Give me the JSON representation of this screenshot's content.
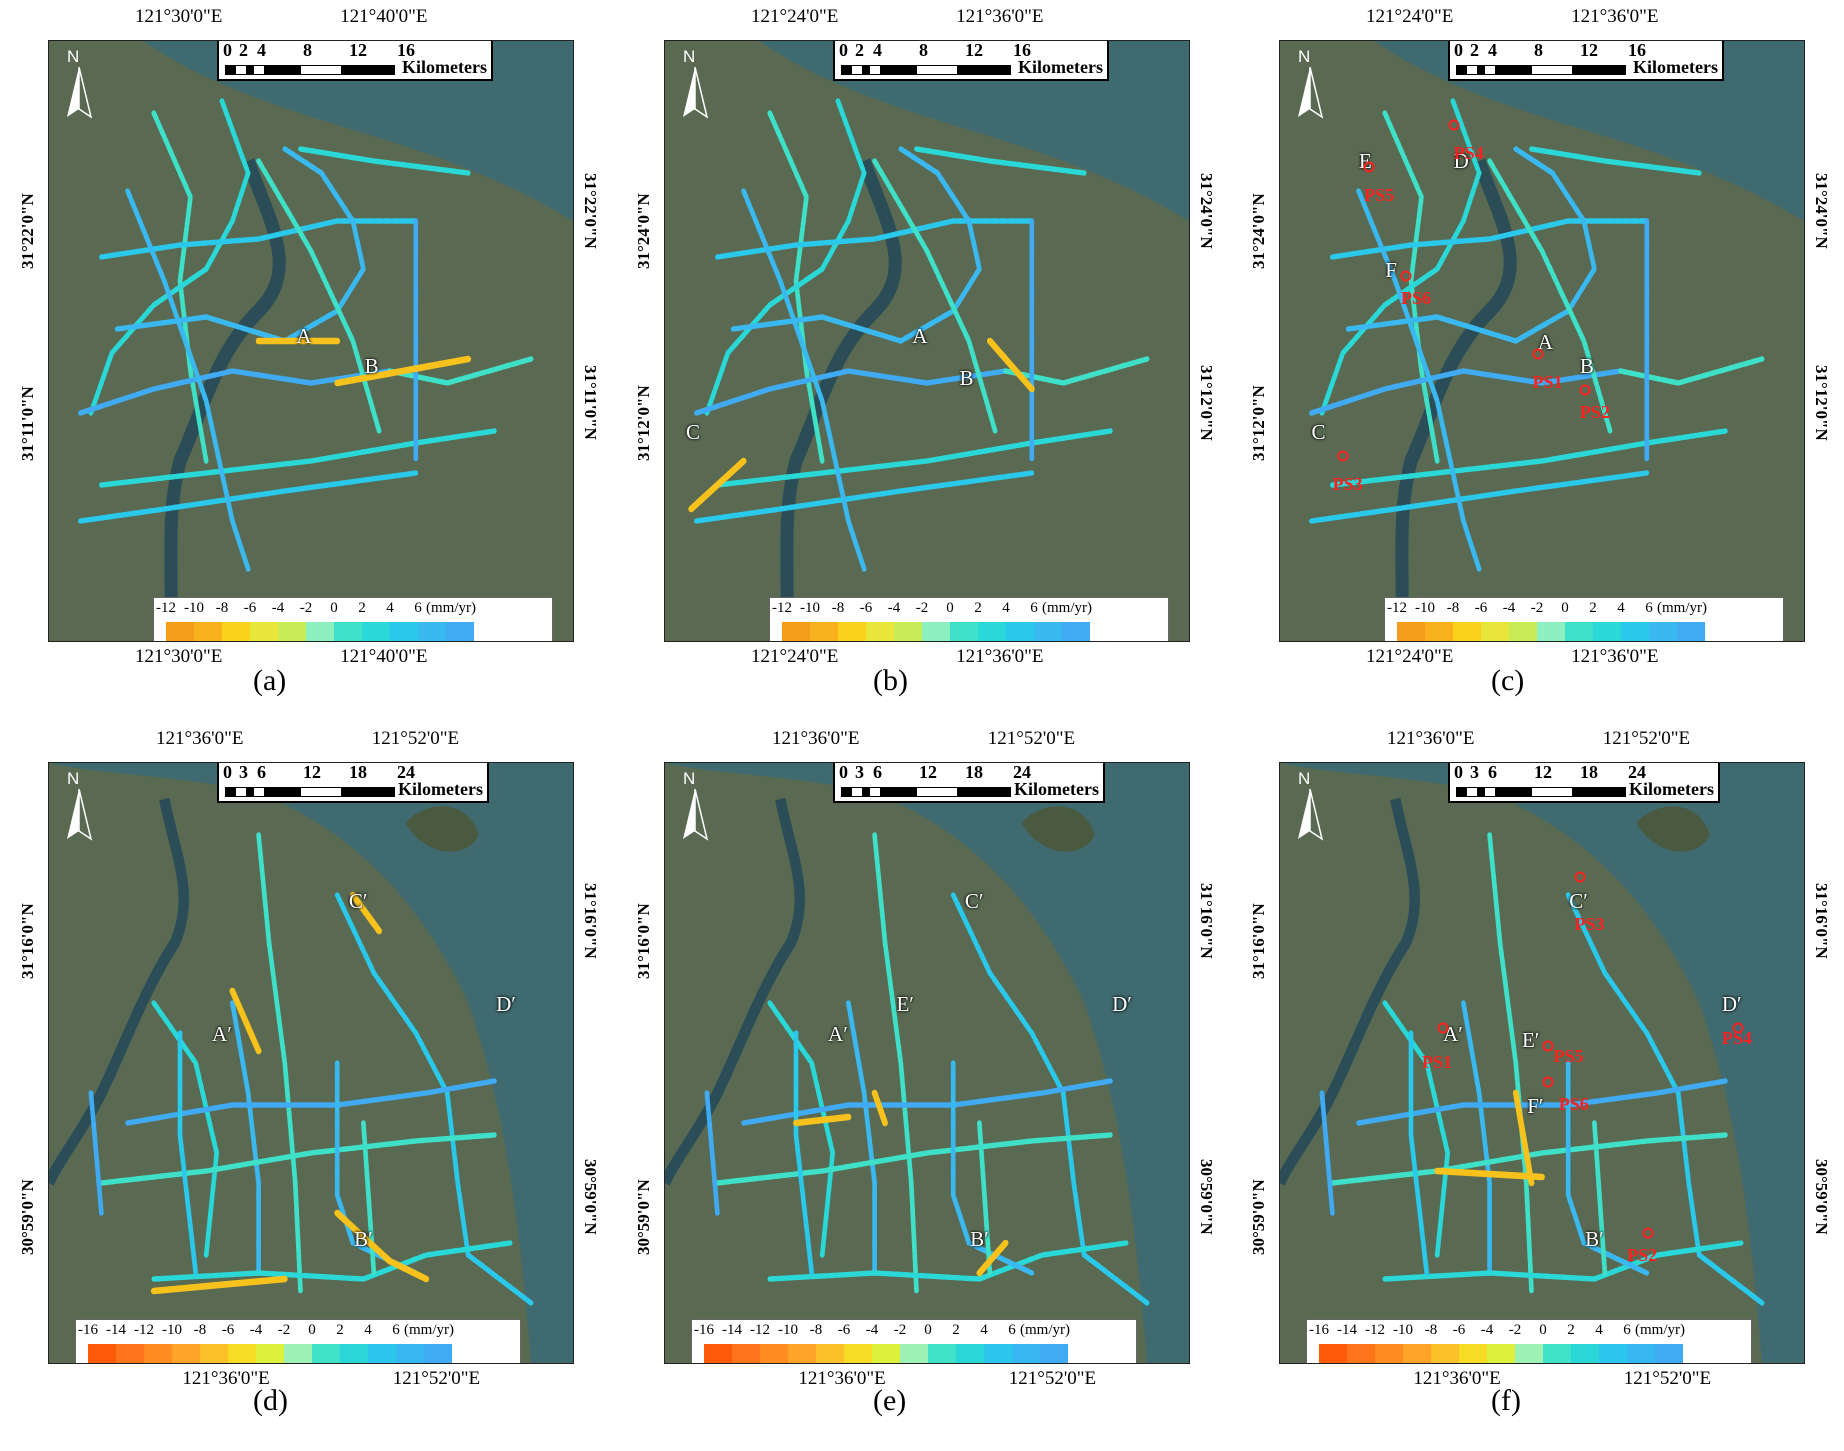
{
  "colors": {
    "land": "#5a6a52",
    "water": "#3f6a70",
    "river": "#2a4d57",
    "legend_a": [
      "#f59c1a",
      "#f8b11c",
      "#fad21e",
      "#e8e63a",
      "#c8ec55",
      "#8df0c0",
      "#3fe0c8",
      "#2ad8d8",
      "#2ac8ea",
      "#3ab8f0",
      "#40aaf2"
    ],
    "legend_d": [
      "#ff5a0a",
      "#ff7418",
      "#ff8c20",
      "#ffa428",
      "#fcc02a",
      "#f6dc24",
      "#dcf03c",
      "#9ef2b8",
      "#40e2c8",
      "#2ad6d8",
      "#2ac6ec",
      "#38b8f2",
      "#40aaf4"
    ],
    "ps_marker": "#ff2020"
  },
  "panels": [
    {
      "id": "a",
      "caption": "(a)",
      "top_lon": [
        "121°30'0\"E",
        "121°40'0\"E"
      ],
      "bot_lon": [
        "121°30'0\"E",
        "121°40'0\"E"
      ],
      "lat_left": [
        "31°22'0\"N",
        "31°11'0\"N"
      ],
      "lat_right": [
        "31°22'0\"N",
        "31°11'0\"N"
      ],
      "scale": {
        "ticks": [
          "0",
          "2",
          "4",
          "8",
          "12",
          "16"
        ],
        "unit": "Kilometers"
      },
      "legend": {
        "ticks": [
          "-12",
          "-10",
          "-8",
          "-6",
          "-4",
          "-2",
          "0",
          "2",
          "4",
          "6"
        ],
        "unit": "(mm/yr)",
        "set": "a"
      },
      "labels": [
        "A",
        "B"
      ],
      "ps": []
    },
    {
      "id": "b",
      "caption": "(b)",
      "top_lon": [
        "121°24'0\"E",
        "121°36'0\"E"
      ],
      "bot_lon": [
        "121°24'0\"E",
        "121°36'0\"E"
      ],
      "lat_left": [
        "31°24'0\"N",
        "31°12'0\"N"
      ],
      "lat_right": [
        "31°24'0\"N",
        "31°12'0\"N"
      ],
      "scale": {
        "ticks": [
          "0",
          "2",
          "4",
          "8",
          "12",
          "16"
        ],
        "unit": "Kilometers"
      },
      "legend": {
        "ticks": [
          "-12",
          "-10",
          "-8",
          "-6",
          "-4",
          "-2",
          "0",
          "2",
          "4",
          "6"
        ],
        "unit": "(mm/yr)",
        "set": "a"
      },
      "labels": [
        "A",
        "B",
        "C"
      ],
      "ps": []
    },
    {
      "id": "c",
      "caption": "(c)",
      "top_lon": [
        "121°24'0\"E",
        "121°36'0\"E"
      ],
      "bot_lon": [
        "121°24'0\"E",
        "121°36'0\"E"
      ],
      "lat_left": [
        "31°24'0\"N",
        "31°12'0\"N"
      ],
      "lat_right": [
        "31°24'0\"N",
        "31°12'0\"N"
      ],
      "scale": {
        "ticks": [
          "0",
          "2",
          "4",
          "8",
          "12",
          "16"
        ],
        "unit": "Kilometers"
      },
      "legend": {
        "ticks": [
          "-12",
          "-10",
          "-8",
          "-6",
          "-4",
          "-2",
          "0",
          "2",
          "4",
          "6"
        ],
        "unit": "(mm/yr)",
        "set": "a"
      },
      "labels": [
        "A",
        "B",
        "C",
        "D",
        "E",
        "F"
      ],
      "ps": [
        "PS1",
        "PS2",
        "PS3",
        "PS4",
        "PS5",
        "PS6"
      ]
    },
    {
      "id": "d",
      "caption": "(d)",
      "top_lon": [
        "121°36'0\"E",
        "121°52'0\"E"
      ],
      "bot_lon": [
        "121°36'0\"E",
        "121°52'0\"E"
      ],
      "lat_left": [
        "31°16'0\"N",
        "30°59'0\"N"
      ],
      "lat_right": [
        "31°16'0\"N",
        "30°59'0\"N"
      ],
      "scale": {
        "ticks": [
          "0",
          "3",
          "6",
          "12",
          "18",
          "24"
        ],
        "unit": "Kilometers"
      },
      "legend": {
        "ticks": [
          "-16",
          "-14",
          "-12",
          "-10",
          "-8",
          "-6",
          "-4",
          "-2",
          "0",
          "2",
          "4",
          "6"
        ],
        "unit": "(mm/yr)",
        "set": "d"
      },
      "labels": [
        "A′",
        "B′",
        "C′",
        "D′"
      ],
      "ps": []
    },
    {
      "id": "e",
      "caption": "(e)",
      "top_lon": [
        "121°36'0\"E",
        "121°52'0\"E"
      ],
      "bot_lon": [
        "121°36'0\"E",
        "121°52'0\"E"
      ],
      "lat_left": [
        "31°16'0\"N",
        "30°59'0\"N"
      ],
      "lat_right": [
        "31°16'0\"N",
        "30°59'0\"N"
      ],
      "scale": {
        "ticks": [
          "0",
          "3",
          "6",
          "12",
          "18",
          "24"
        ],
        "unit": "Kilometers"
      },
      "legend": {
        "ticks": [
          "-16",
          "-14",
          "-12",
          "-10",
          "-8",
          "-6",
          "-4",
          "-2",
          "0",
          "2",
          "4",
          "6"
        ],
        "unit": "(mm/yr)",
        "set": "d"
      },
      "labels": [
        "A′",
        "B′",
        "C′",
        "D′",
        "E′"
      ],
      "ps": []
    },
    {
      "id": "f",
      "caption": "(f)",
      "top_lon": [
        "121°36'0\"E",
        "121°52'0\"E"
      ],
      "bot_lon": [
        "121°36'0\"E",
        "121°52'0\"E"
      ],
      "lat_left": [
        "31°16'0\"N",
        "30°59'0\"N"
      ],
      "lat_right": [
        "31°16'0\"N",
        "30°59'0\"N"
      ],
      "scale": {
        "ticks": [
          "0",
          "3",
          "6",
          "12",
          "18",
          "24"
        ],
        "unit": "Kilometers"
      },
      "legend": {
        "ticks": [
          "-16",
          "-14",
          "-12",
          "-10",
          "-8",
          "-6",
          "-4",
          "-2",
          "0",
          "2",
          "4",
          "6"
        ],
        "unit": "(mm/yr)",
        "set": "d"
      },
      "labels": [
        "A′",
        "B′",
        "C′",
        "D′",
        "E′",
        "F′"
      ],
      "ps": [
        "PS1",
        "PS2",
        "PS3",
        "PS4",
        "PS5",
        "PS6"
      ]
    }
  ],
  "north_label": "N"
}
